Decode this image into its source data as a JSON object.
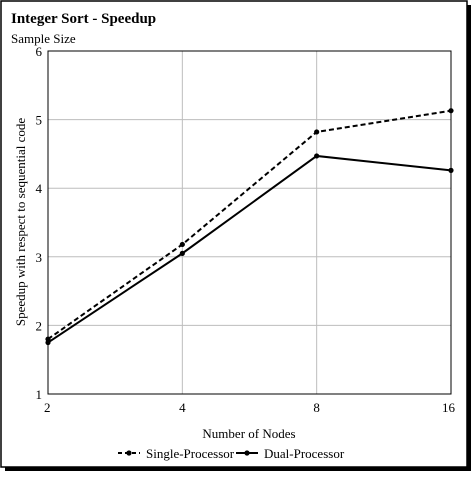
{
  "chart_data": {
    "type": "line",
    "title": "Integer Sort - Speedup",
    "subtitle": "Sample Size",
    "xlabel": "Number of Nodes",
    "ylabel": "Speedup with respect to sequential code",
    "categories": [
      "2",
      "4",
      "8",
      "16"
    ],
    "yticks": [
      "1",
      "2",
      "3",
      "4",
      "5",
      "6"
    ],
    "ylim": [
      1,
      6
    ],
    "grid": true,
    "legend_position": "bottom-center",
    "series": [
      {
        "name": "Single-Processor",
        "values": [
          1.8,
          3.18,
          4.82,
          5.13
        ],
        "style": "dashed",
        "color": "#000000"
      },
      {
        "name": "Dual-Processor",
        "values": [
          1.75,
          3.05,
          4.47,
          4.26
        ],
        "style": "solid",
        "color": "#000000"
      }
    ]
  }
}
